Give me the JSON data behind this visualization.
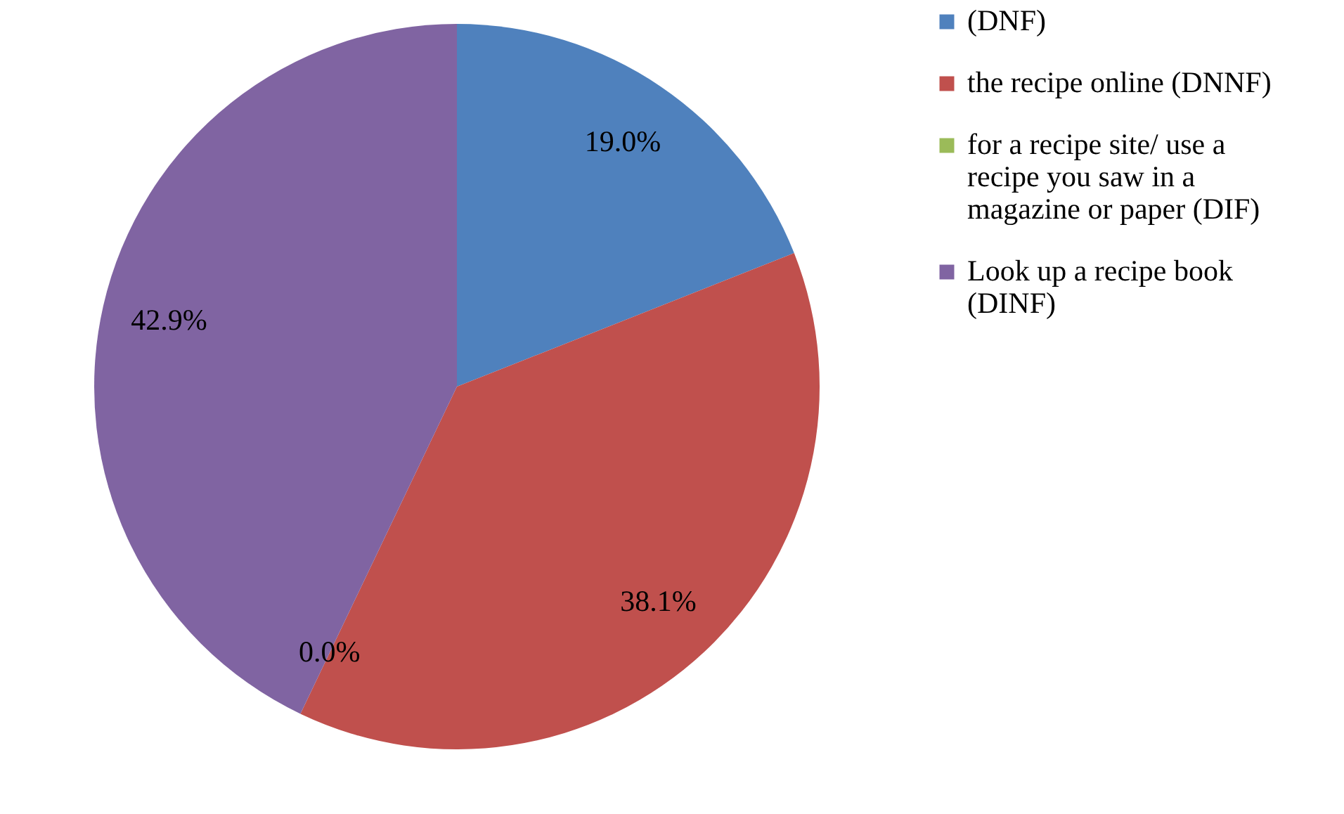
{
  "chart_data": {
    "type": "pie",
    "categories": [
      "(DNF)",
      "the recipe online (DNNF)",
      "for a recipe site/ use a recipe you saw in a magazine or paper (DIF)",
      "Look up a recipe book (DINF)"
    ],
    "values": [
      19.0,
      38.1,
      0.0,
      42.9
    ],
    "value_labels": [
      "19.0%",
      "38.1%",
      "0.0%",
      "42.9%"
    ],
    "colors": [
      "#4f81bd",
      "#c0504d",
      "#9bbb59",
      "#8064a2"
    ],
    "legend": "right"
  }
}
